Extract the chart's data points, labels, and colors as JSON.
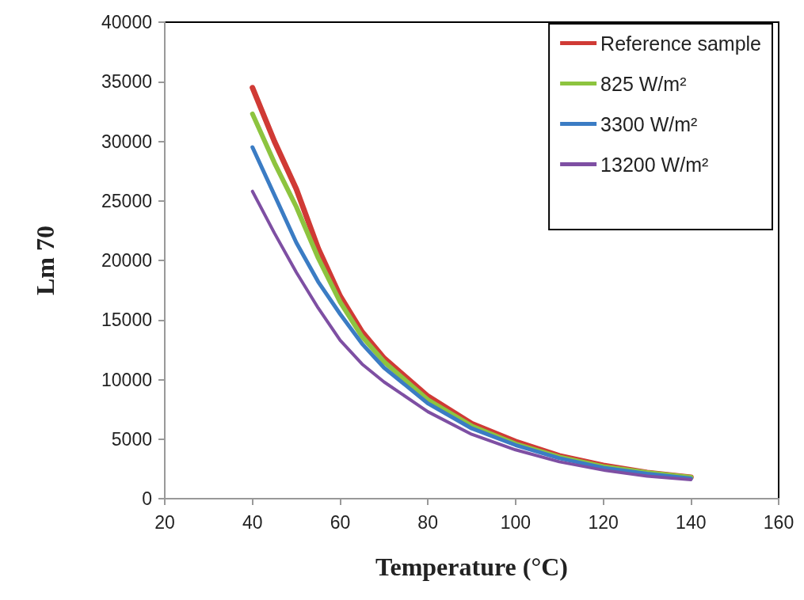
{
  "chart_data": {
    "type": "line",
    "xlabel": "Temperature (°C)",
    "ylabel": "Lm 70",
    "x": [
      40,
      45,
      50,
      55,
      60,
      65,
      70,
      80,
      90,
      100,
      110,
      120,
      130,
      140
    ],
    "series": [
      {
        "name": "Reference sample",
        "color": "#d03a35",
        "values": [
          34500,
          30000,
          26000,
          21000,
          17000,
          14000,
          11800,
          8600,
          6300,
          4800,
          3600,
          2800,
          2200,
          1800
        ]
      },
      {
        "name": "825 W/m²",
        "color": "#8dc43f",
        "values": [
          32300,
          28200,
          24500,
          20200,
          16500,
          13600,
          11500,
          8300,
          6100,
          4600,
          3500,
          2700,
          2200,
          1800
        ]
      },
      {
        "name": "3300 W/m²",
        "color": "#3b7cc4",
        "values": [
          29500,
          25500,
          21500,
          18200,
          15500,
          13000,
          11000,
          8000,
          5900,
          4500,
          3400,
          2600,
          2100,
          1700
        ]
      },
      {
        "name": "13200 W/m²",
        "color": "#7e4fa3",
        "values": [
          25800,
          22300,
          19000,
          16000,
          13300,
          11300,
          9800,
          7300,
          5400,
          4100,
          3100,
          2400,
          1900,
          1600
        ]
      }
    ],
    "xlim": [
      20,
      160
    ],
    "xticks": [
      20,
      40,
      60,
      80,
      100,
      120,
      140,
      160
    ],
    "ylim": [
      0,
      40000
    ],
    "yticks": [
      0,
      5000,
      10000,
      15000,
      20000,
      25000,
      30000,
      35000,
      40000
    ],
    "grid": false,
    "legend": "top right",
    "marker": "none",
    "line_style": "solid"
  }
}
